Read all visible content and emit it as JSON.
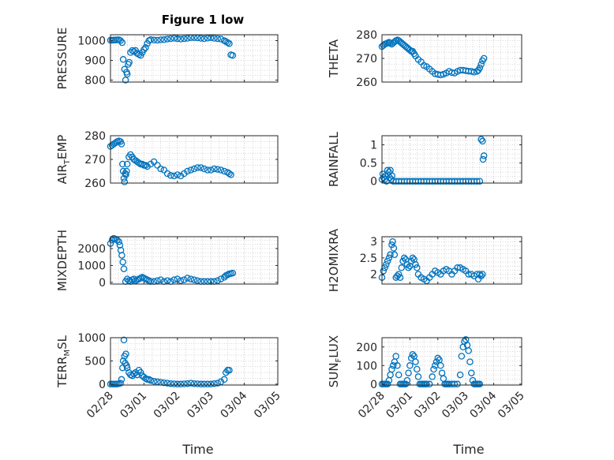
{
  "figure_title": "Figure 1 low",
  "x_axis_label": "Time",
  "x_tick_labels": [
    "02/28",
    "03/01",
    "03/02",
    "03/03",
    "03/04",
    "03/05"
  ],
  "colors": {
    "marker": "#0072bd",
    "axes": "#262626",
    "grid": "#b0b0b0",
    "background": "#ffffff"
  },
  "chart_data": [
    {
      "type": "scatter",
      "name": "PRESSURE",
      "ylabel": "PRESSURE",
      "xlim": [
        0,
        5
      ],
      "ylim": [
        790,
        1030
      ],
      "yticks": [
        800,
        900,
        1000
      ],
      "x": [
        0,
        0.05,
        0.1,
        0.15,
        0.2,
        0.25,
        0.3,
        0.35,
        0.38,
        0.42,
        0.45,
        0.48,
        0.5,
        0.53,
        0.56,
        0.6,
        0.65,
        0.7,
        0.75,
        0.8,
        0.85,
        0.9,
        0.95,
        1.0,
        1.05,
        1.1,
        1.15,
        1.2,
        1.3,
        1.4,
        1.5,
        1.6,
        1.7,
        1.8,
        1.9,
        2.0,
        2.1,
        2.2,
        2.3,
        2.4,
        2.5,
        2.6,
        2.7,
        2.8,
        2.9,
        3.0,
        3.1,
        3.2,
        3.3,
        3.4,
        3.45,
        3.5,
        3.55,
        3.6,
        3.65
      ],
      "y": [
        1002,
        1002,
        1003,
        1003,
        1004,
        1004,
        1000,
        990,
        905,
        855,
        800,
        840,
        830,
        880,
        890,
        940,
        950,
        945,
        950,
        935,
        930,
        925,
        940,
        955,
        965,
        985,
        1000,
        1005,
        1003,
        1002,
        1004,
        1005,
        1008,
        1010,
        1012,
        1010,
        1008,
        1010,
        1012,
        1015,
        1015,
        1014,
        1012,
        1010,
        1013,
        1015,
        1012,
        1010,
        1008,
        1000,
        995,
        990,
        985,
        928,
        925
      ]
    },
    {
      "type": "scatter",
      "name": "THETA",
      "ylabel": "THETA",
      "xlim": [
        0,
        5
      ],
      "ylim": [
        260,
        280
      ],
      "yticks": [
        260,
        270,
        280
      ],
      "x": [
        0,
        0.05,
        0.1,
        0.15,
        0.2,
        0.25,
        0.3,
        0.35,
        0.4,
        0.45,
        0.5,
        0.55,
        0.6,
        0.65,
        0.7,
        0.75,
        0.8,
        0.85,
        0.9,
        0.95,
        1.0,
        1.05,
        1.1,
        1.15,
        1.2,
        1.3,
        1.4,
        1.5,
        1.6,
        1.7,
        1.8,
        1.9,
        2.0,
        2.1,
        2.2,
        2.3,
        2.4,
        2.5,
        2.6,
        2.7,
        2.8,
        2.9,
        3.0,
        3.1,
        3.2,
        3.3,
        3.4,
        3.45,
        3.5,
        3.55,
        3.6,
        3.65
      ],
      "y": [
        275,
        275.5,
        276,
        276.2,
        276.5,
        276.8,
        276.5,
        276,
        276.5,
        277,
        277.5,
        277.8,
        277.5,
        277,
        276.5,
        276,
        275.5,
        275,
        274.5,
        274,
        273.5,
        273,
        273,
        272,
        271,
        269.5,
        268.5,
        267,
        266.5,
        265.5,
        264.5,
        263.5,
        263.2,
        263,
        263.3,
        263.8,
        264.5,
        264,
        263.8,
        264.5,
        265,
        265,
        264.8,
        264.6,
        264.5,
        264.2,
        264.5,
        265,
        266,
        267.5,
        269,
        270
      ]
    },
    {
      "type": "scatter",
      "name": "AIR_TEMP",
      "ylabel": "AIR_TEMP",
      "xlim": [
        0,
        5
      ],
      "ylim": [
        260,
        280
      ],
      "yticks": [
        260,
        270,
        280
      ],
      "x": [
        0,
        0.05,
        0.1,
        0.15,
        0.2,
        0.25,
        0.3,
        0.33,
        0.36,
        0.38,
        0.4,
        0.42,
        0.44,
        0.46,
        0.48,
        0.5,
        0.55,
        0.6,
        0.65,
        0.7,
        0.75,
        0.8,
        0.85,
        0.9,
        0.95,
        1.0,
        1.05,
        1.1,
        1.2,
        1.3,
        1.4,
        1.5,
        1.6,
        1.7,
        1.8,
        1.9,
        2.0,
        2.1,
        2.2,
        2.3,
        2.4,
        2.5,
        2.6,
        2.7,
        2.8,
        2.9,
        3.0,
        3.1,
        3.2,
        3.3,
        3.4,
        3.5,
        3.55,
        3.6
      ],
      "y": [
        275.5,
        276,
        276.5,
        277,
        277.5,
        277.8,
        277.5,
        276.5,
        268,
        265,
        262,
        260.5,
        264,
        263.5,
        265,
        268,
        271,
        272,
        271,
        270,
        269.5,
        269,
        268.5,
        268,
        268,
        267.5,
        267.5,
        267,
        268,
        269,
        267.5,
        266,
        265.5,
        264,
        263.2,
        263,
        263.5,
        263,
        264,
        265,
        265.5,
        266,
        266.5,
        266.5,
        266,
        265.5,
        265.5,
        266,
        265.8,
        265.5,
        265,
        264.5,
        264,
        263.5
      ]
    },
    {
      "type": "scatter",
      "name": "RAINFALL",
      "ylabel": "RAINFALL",
      "xlim": [
        0,
        5
      ],
      "ylim": [
        -0.05,
        1.25
      ],
      "yticks": [
        0,
        0.5,
        1
      ],
      "x": [
        0,
        0.03,
        0.06,
        0.1,
        0.13,
        0.16,
        0.2,
        0.25,
        0.28,
        0.3,
        0.33,
        0.36,
        0.4,
        0.5,
        0.6,
        0.7,
        0.8,
        0.9,
        1.0,
        1.1,
        1.2,
        1.3,
        1.4,
        1.5,
        1.6,
        1.7,
        1.8,
        1.9,
        2.0,
        2.1,
        2.2,
        2.3,
        2.4,
        2.5,
        2.6,
        2.7,
        2.8,
        2.9,
        3.0,
        3.1,
        3.2,
        3.3,
        3.4,
        3.5,
        3.55,
        3.6,
        3.62,
        3.65
      ],
      "y": [
        0.05,
        0.2,
        0.1,
        0.05,
        0.15,
        0.0,
        0.3,
        0.25,
        0.1,
        0.3,
        0.05,
        0.15,
        0.0,
        0.0,
        0.0,
        0.0,
        0.0,
        0.0,
        0.0,
        0.0,
        0.0,
        0.0,
        0.0,
        0.0,
        0.0,
        0.0,
        0.0,
        0.0,
        0.0,
        0.0,
        0.0,
        0.0,
        0.0,
        0.0,
        0.0,
        0.0,
        0.0,
        0.0,
        0.0,
        0.0,
        0.0,
        0.0,
        0.0,
        0.0,
        1.15,
        1.1,
        0.6,
        0.7
      ]
    },
    {
      "type": "scatter",
      "name": "MIXDEPTH",
      "ylabel": "MIXDEPTH",
      "xlim": [
        0,
        5
      ],
      "ylim": [
        -100,
        2700
      ],
      "yticks": [
        0,
        1000,
        2000
      ],
      "x": [
        0,
        0.05,
        0.1,
        0.15,
        0.2,
        0.25,
        0.28,
        0.31,
        0.34,
        0.37,
        0.4,
        0.45,
        0.5,
        0.55,
        0.6,
        0.65,
        0.7,
        0.75,
        0.8,
        0.85,
        0.9,
        0.95,
        1.0,
        1.05,
        1.1,
        1.15,
        1.2,
        1.3,
        1.4,
        1.5,
        1.6,
        1.7,
        1.8,
        1.9,
        2.0,
        2.1,
        2.2,
        2.3,
        2.4,
        2.5,
        2.6,
        2.7,
        2.8,
        2.9,
        3.0,
        3.1,
        3.2,
        3.3,
        3.4,
        3.45,
        3.5,
        3.55,
        3.6,
        3.65
      ],
      "y": [
        2300,
        2500,
        2600,
        2550,
        2500,
        2400,
        2200,
        1900,
        1600,
        1200,
        800,
        50,
        200,
        100,
        50,
        150,
        200,
        100,
        150,
        200,
        250,
        300,
        250,
        200,
        150,
        100,
        50,
        50,
        100,
        150,
        50,
        100,
        50,
        150,
        200,
        100,
        150,
        250,
        200,
        150,
        100,
        50,
        50,
        50,
        50,
        50,
        100,
        200,
        300,
        400,
        450,
        500,
        520,
        550
      ]
    },
    {
      "type": "scatter",
      "name": "H2OMIXRA",
      "ylabel": "H2OMIXRA",
      "xlim": [
        0,
        5
      ],
      "ylim": [
        1.7,
        3.15
      ],
      "yticks": [
        2,
        2.5,
        3
      ],
      "x": [
        0,
        0.05,
        0.1,
        0.15,
        0.2,
        0.25,
        0.3,
        0.35,
        0.38,
        0.42,
        0.45,
        0.5,
        0.55,
        0.6,
        0.65,
        0.7,
        0.75,
        0.8,
        0.85,
        0.9,
        0.95,
        1.0,
        1.05,
        1.1,
        1.15,
        1.2,
        1.25,
        1.3,
        1.4,
        1.5,
        1.6,
        1.7,
        1.8,
        1.9,
        2.0,
        2.1,
        2.2,
        2.3,
        2.4,
        2.5,
        2.6,
        2.7,
        2.8,
        2.9,
        3.0,
        3.1,
        3.2,
        3.3,
        3.4,
        3.45,
        3.5,
        3.55,
        3.6
      ],
      "y": [
        1.9,
        2.1,
        2.2,
        2.3,
        2.4,
        2.5,
        2.6,
        2.9,
        3.0,
        2.8,
        2.6,
        1.9,
        1.95,
        2.0,
        1.9,
        2.2,
        2.4,
        2.5,
        2.45,
        2.3,
        2.2,
        2.25,
        2.4,
        2.5,
        2.45,
        2.3,
        2.2,
        2.0,
        1.9,
        1.85,
        1.8,
        1.9,
        2.0,
        2.1,
        2.05,
        2.0,
        2.1,
        2.15,
        2.1,
        2.0,
        2.1,
        2.2,
        2.2,
        2.15,
        2.1,
        2.0,
        2.0,
        1.95,
        2.0,
        1.85,
        2.0,
        1.95,
        2.0
      ]
    },
    {
      "type": "scatter",
      "name": "TERR_MSL",
      "ylabel": "TERR_MSL",
      "xlim": [
        0,
        5
      ],
      "ylim": [
        -20,
        1000
      ],
      "yticks": [
        0,
        500,
        1000
      ],
      "x": [
        0,
        0.05,
        0.1,
        0.15,
        0.2,
        0.25,
        0.3,
        0.33,
        0.36,
        0.38,
        0.4,
        0.42,
        0.44,
        0.46,
        0.48,
        0.5,
        0.55,
        0.6,
        0.65,
        0.7,
        0.75,
        0.8,
        0.85,
        0.9,
        0.95,
        1.0,
        1.05,
        1.1,
        1.15,
        1.2,
        1.3,
        1.4,
        1.5,
        1.6,
        1.7,
        1.8,
        1.9,
        2.0,
        2.1,
        2.2,
        2.3,
        2.4,
        2.5,
        2.6,
        2.7,
        2.8,
        2.9,
        3.0,
        3.1,
        3.2,
        3.3,
        3.4,
        3.45,
        3.5,
        3.55
      ],
      "y": [
        0,
        0,
        0,
        0,
        0,
        10,
        20,
        100,
        350,
        500,
        950,
        600,
        450,
        650,
        400,
        350,
        250,
        200,
        180,
        220,
        250,
        200,
        300,
        250,
        180,
        150,
        120,
        100,
        100,
        80,
        60,
        50,
        40,
        30,
        20,
        10,
        5,
        0,
        0,
        5,
        10,
        20,
        10,
        5,
        0,
        0,
        0,
        0,
        10,
        20,
        50,
        100,
        250,
        300,
        300
      ]
    },
    {
      "type": "scatter",
      "name": "SUN_FLUX",
      "ylabel": "SUN_FLUX",
      "xlim": [
        0,
        5
      ],
      "ylim": [
        -5,
        250
      ],
      "yticks": [
        0,
        100,
        200
      ],
      "x": [
        0,
        0.05,
        0.1,
        0.15,
        0.2,
        0.25,
        0.3,
        0.35,
        0.4,
        0.45,
        0.5,
        0.55,
        0.6,
        0.65,
        0.7,
        0.75,
        0.8,
        0.85,
        0.9,
        0.95,
        1.0,
        1.05,
        1.1,
        1.15,
        1.2,
        1.25,
        1.3,
        1.35,
        1.4,
        1.45,
        1.5,
        1.55,
        1.6,
        1.7,
        1.8,
        1.85,
        1.9,
        1.95,
        2.0,
        2.05,
        2.1,
        2.15,
        2.2,
        2.25,
        2.3,
        2.35,
        2.4,
        2.5,
        2.6,
        2.7,
        2.8,
        2.85,
        2.9,
        2.95,
        3.0,
        3.05,
        3.1,
        3.15,
        3.2,
        3.25,
        3.3,
        3.35,
        3.4,
        3.45,
        3.5
      ],
      "y": [
        0,
        0,
        0,
        0,
        0,
        20,
        50,
        80,
        100,
        120,
        150,
        100,
        50,
        0,
        0,
        0,
        0,
        0,
        20,
        60,
        100,
        140,
        160,
        150,
        120,
        80,
        40,
        0,
        0,
        0,
        0,
        0,
        0,
        0,
        40,
        80,
        100,
        120,
        140,
        130,
        100,
        60,
        30,
        0,
        0,
        0,
        0,
        0,
        0,
        0,
        50,
        150,
        200,
        230,
        240,
        210,
        180,
        120,
        60,
        20,
        0,
        0,
        0,
        0,
        0
      ]
    }
  ]
}
